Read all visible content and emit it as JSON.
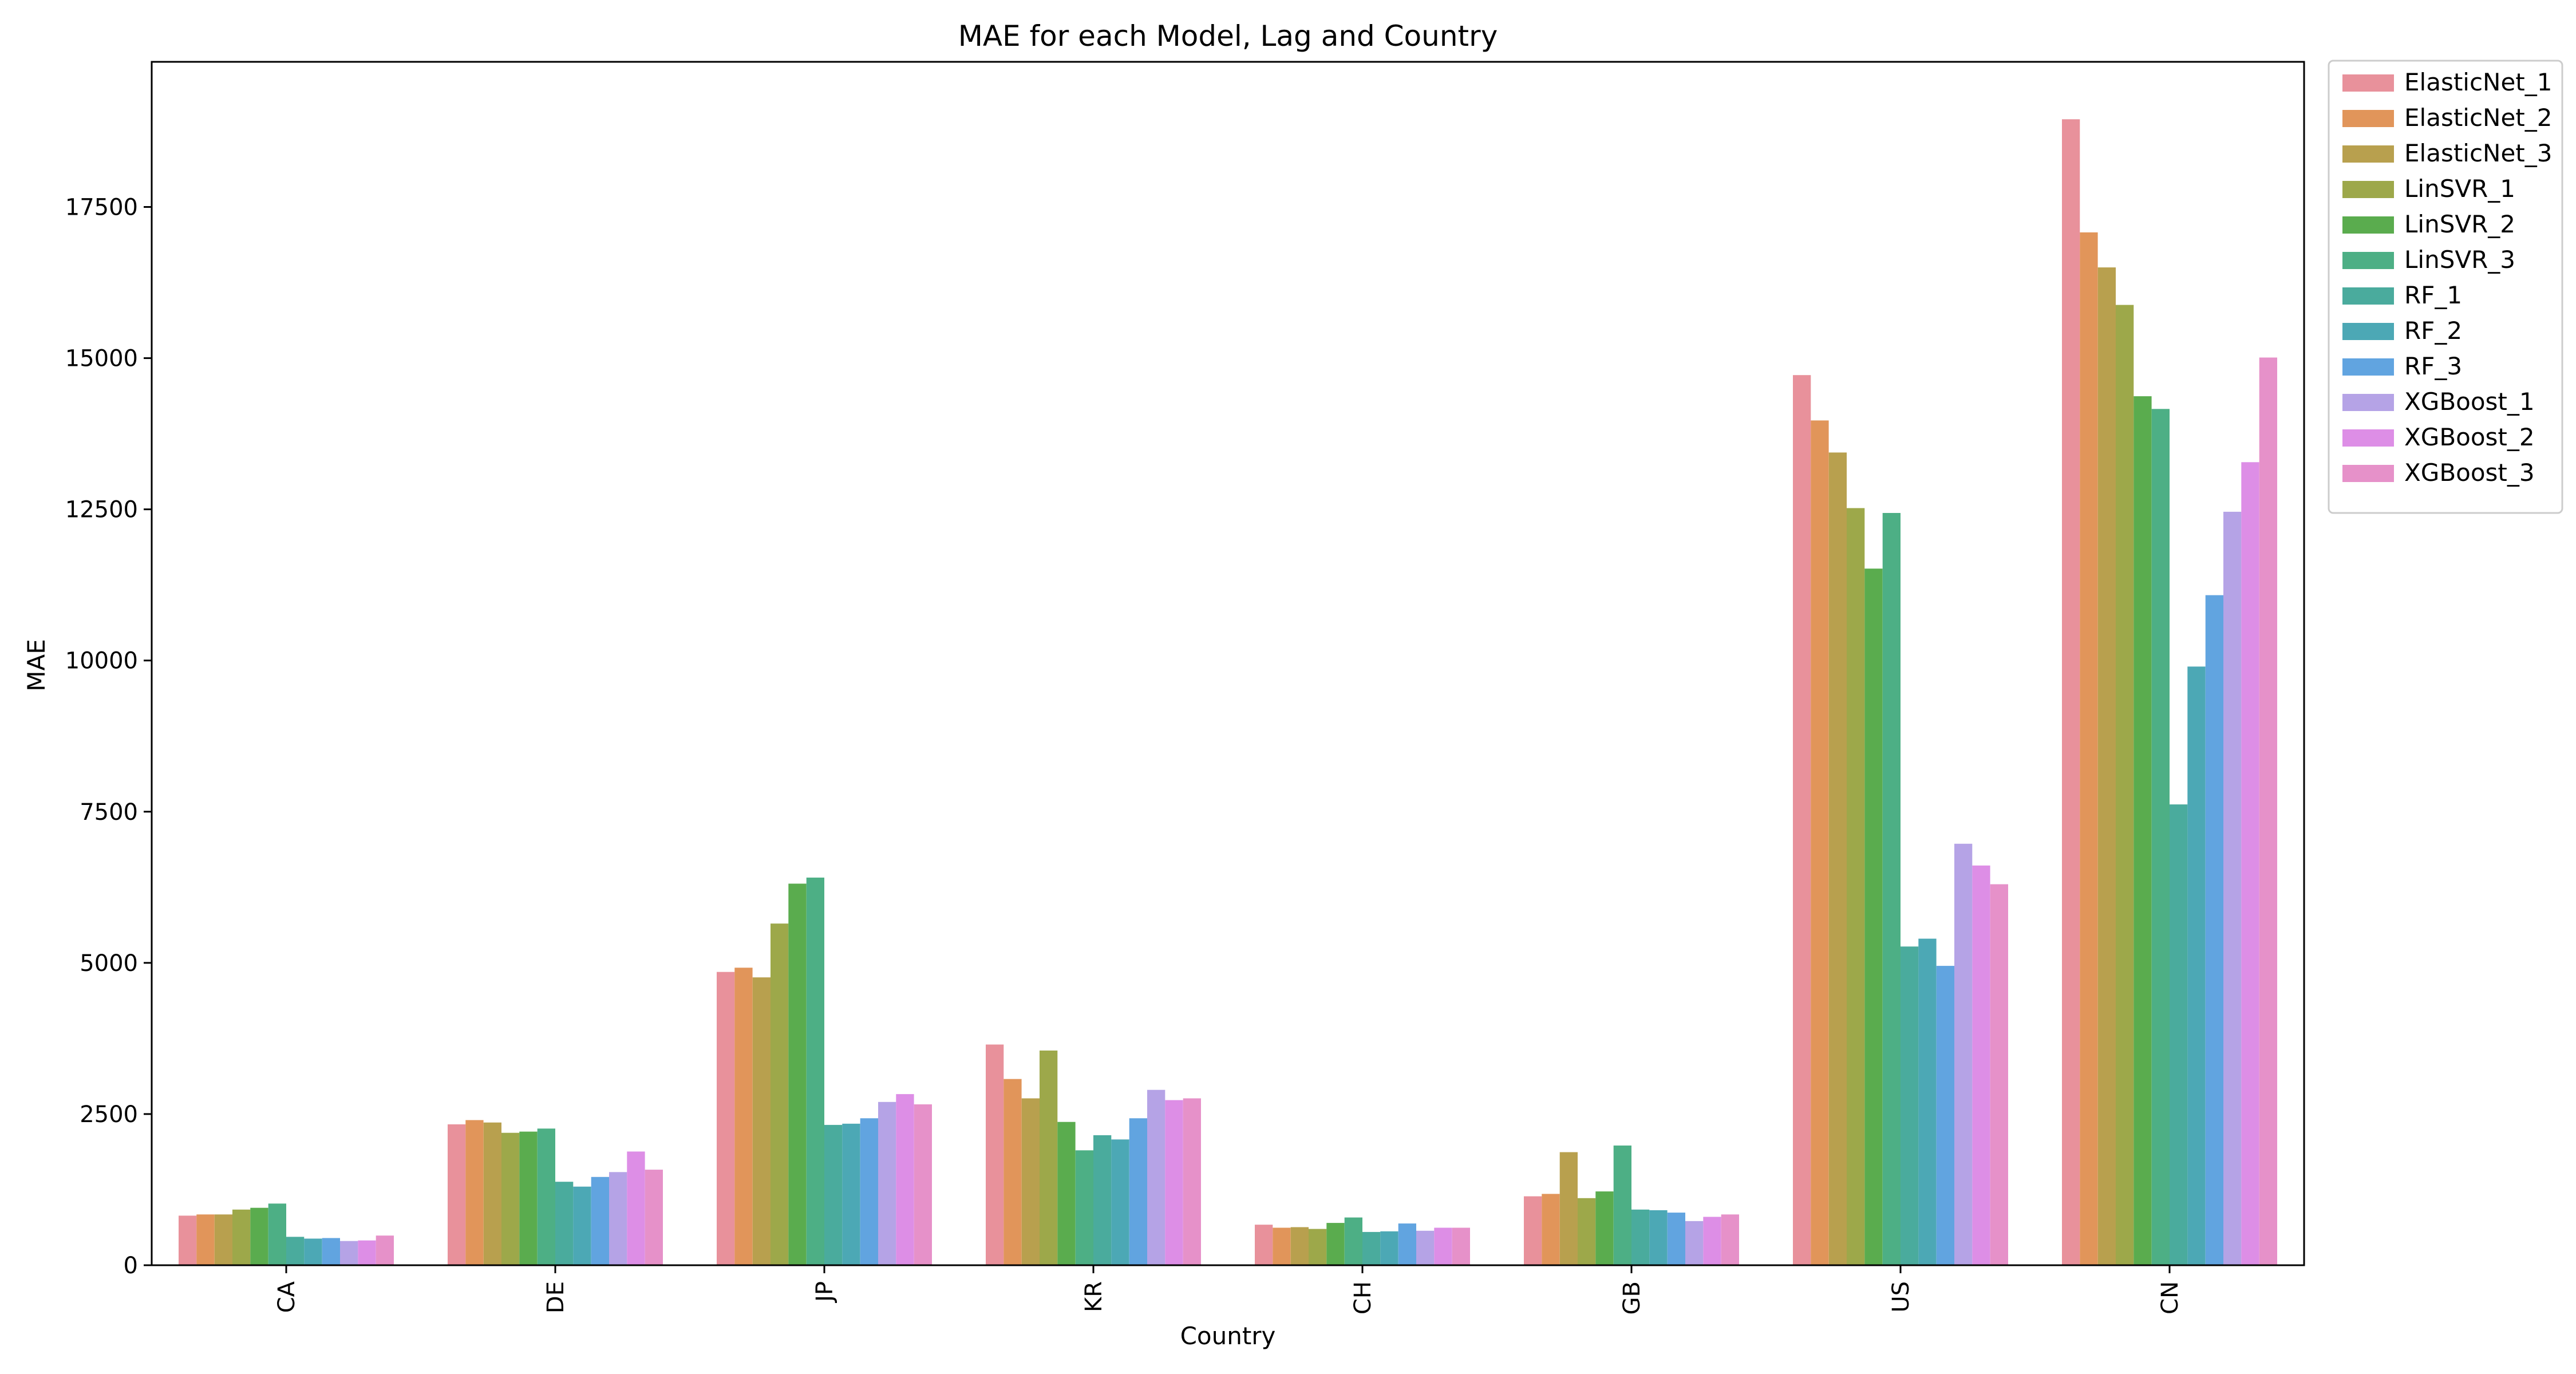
{
  "chart_data": {
    "type": "bar",
    "title": "MAE for each Model, Lag and Country",
    "xlabel": "Country",
    "ylabel": "MAE",
    "ylim": [
      0,
      19900
    ],
    "yticks": [
      0,
      2500,
      5000,
      7500,
      10000,
      12500,
      15000,
      17500
    ],
    "categories": [
      "CA",
      "DE",
      "JP",
      "KR",
      "CH",
      "GB",
      "US",
      "CN"
    ],
    "legend_position": "outside-top-right",
    "grid": false,
    "series": [
      {
        "name": "ElasticNet_1",
        "color": "#e8919b",
        "values": [
          820,
          2330,
          4850,
          3650,
          670,
          1140,
          14720,
          18950
        ]
      },
      {
        "name": "ElasticNet_2",
        "color": "#e1955a",
        "values": [
          840,
          2400,
          4920,
          3080,
          620,
          1180,
          13970,
          17080
        ]
      },
      {
        "name": "ElasticNet_3",
        "color": "#b8a04e",
        "values": [
          840,
          2360,
          4760,
          2760,
          630,
          1870,
          13440,
          16500
        ]
      },
      {
        "name": "LinSVR_1",
        "color": "#9da84a",
        "values": [
          920,
          2190,
          5650,
          3550,
          600,
          1110,
          12520,
          15880
        ]
      },
      {
        "name": "LinSVR_2",
        "color": "#5aac4e",
        "values": [
          950,
          2210,
          6310,
          2370,
          700,
          1220,
          11520,
          14370
        ]
      },
      {
        "name": "LinSVR_3",
        "color": "#4daf85",
        "values": [
          1020,
          2260,
          6410,
          1900,
          790,
          1980,
          12440,
          14160
        ]
      },
      {
        "name": "RF_1",
        "color": "#4aab9d",
        "values": [
          470,
          1380,
          2320,
          2150,
          550,
          920,
          5270,
          7620
        ]
      },
      {
        "name": "RF_2",
        "color": "#4ca8b5",
        "values": [
          440,
          1300,
          2340,
          2080,
          560,
          910,
          5400,
          9900
        ]
      },
      {
        "name": "RF_3",
        "color": "#61a4e0",
        "values": [
          450,
          1460,
          2430,
          2430,
          690,
          870,
          4950,
          11080
        ]
      },
      {
        "name": "XGBoost_1",
        "color": "#b5a3e6",
        "values": [
          400,
          1540,
          2700,
          2900,
          570,
          730,
          6970,
          12460
        ]
      },
      {
        "name": "XGBoost_2",
        "color": "#dd8ee6",
        "values": [
          410,
          1880,
          2830,
          2730,
          620,
          800,
          6610,
          13280
        ]
      },
      {
        "name": "XGBoost_3",
        "color": "#e691c9",
        "values": [
          490,
          1580,
          2660,
          2760,
          620,
          840,
          6300,
          15010
        ]
      }
    ]
  }
}
